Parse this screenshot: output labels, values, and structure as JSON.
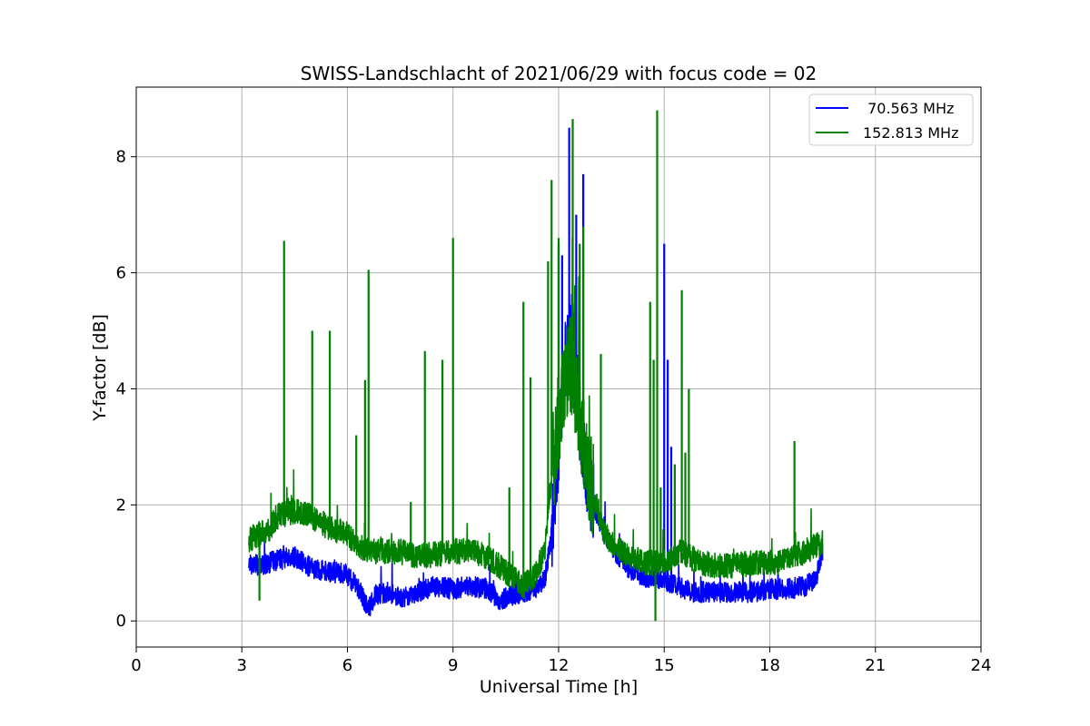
{
  "chart_data": {
    "type": "line",
    "title": "SWISS-Landschlacht of 2021/06/29 with focus code = 02",
    "xlabel": "Universal Time [h]",
    "ylabel": "Y-factor [dB]",
    "xlim": [
      0,
      24
    ],
    "ylim": [
      -0.45,
      9.2
    ],
    "x_ticks": [
      0,
      3,
      6,
      9,
      12,
      15,
      18,
      21,
      24
    ],
    "y_ticks": [
      0,
      2,
      4,
      6,
      8
    ],
    "grid": true,
    "legend_position": "top-right",
    "series": [
      {
        "name": " 70.563 MHz",
        "color": "#0000ff",
        "base": [
          [
            3.2,
            1.0
          ],
          [
            3.5,
            0.95
          ],
          [
            4.0,
            1.05
          ],
          [
            4.5,
            1.1
          ],
          [
            5.0,
            0.9
          ],
          [
            5.5,
            0.85
          ],
          [
            6.0,
            0.8
          ],
          [
            6.3,
            0.55
          ],
          [
            6.6,
            0.2
          ],
          [
            6.8,
            0.45
          ],
          [
            7.2,
            0.5
          ],
          [
            7.5,
            0.4
          ],
          [
            8.0,
            0.5
          ],
          [
            8.5,
            0.6
          ],
          [
            9.0,
            0.55
          ],
          [
            9.5,
            0.6
          ],
          [
            10.0,
            0.55
          ],
          [
            10.3,
            0.35
          ],
          [
            10.7,
            0.45
          ],
          [
            11.0,
            0.5
          ],
          [
            11.3,
            0.55
          ],
          [
            11.6,
            0.7
          ],
          [
            11.8,
            1.5
          ],
          [
            12.0,
            3.0
          ],
          [
            12.2,
            4.5
          ],
          [
            12.4,
            5.0
          ],
          [
            12.6,
            3.5
          ],
          [
            12.8,
            2.5
          ],
          [
            13.0,
            2.0
          ],
          [
            13.3,
            1.5
          ],
          [
            13.6,
            1.2
          ],
          [
            14.0,
            0.9
          ],
          [
            14.5,
            0.75
          ],
          [
            15.0,
            0.7
          ],
          [
            15.4,
            0.6
          ],
          [
            15.8,
            0.5
          ],
          [
            16.5,
            0.5
          ],
          [
            17.0,
            0.5
          ],
          [
            17.5,
            0.5
          ],
          [
            18.0,
            0.55
          ],
          [
            18.5,
            0.55
          ],
          [
            19.0,
            0.6
          ],
          [
            19.3,
            0.7
          ],
          [
            19.5,
            1.2
          ]
        ],
        "noise": 0.18,
        "spikes": [
          [
            12.0,
            6.5
          ],
          [
            12.3,
            8.5
          ],
          [
            12.5,
            7.0
          ],
          [
            12.7,
            7.7
          ],
          [
            13.3,
            1.8
          ],
          [
            15.0,
            6.5
          ],
          [
            15.1,
            4.5
          ],
          [
            15.2,
            3.0
          ],
          [
            12.1,
            6.3
          ]
        ]
      },
      {
        "name": "152.813 MHz",
        "color": "#008000",
        "base": [
          [
            3.2,
            1.4
          ],
          [
            3.5,
            1.5
          ],
          [
            3.8,
            1.6
          ],
          [
            4.0,
            1.8
          ],
          [
            4.5,
            1.9
          ],
          [
            5.0,
            1.8
          ],
          [
            5.5,
            1.6
          ],
          [
            6.0,
            1.5
          ],
          [
            6.3,
            1.3
          ],
          [
            6.7,
            1.2
          ],
          [
            7.0,
            1.2
          ],
          [
            7.5,
            1.2
          ],
          [
            8.0,
            1.1
          ],
          [
            8.5,
            1.15
          ],
          [
            9.0,
            1.2
          ],
          [
            9.5,
            1.2
          ],
          [
            10.0,
            1.1
          ],
          [
            10.5,
            0.85
          ],
          [
            10.8,
            0.7
          ],
          [
            11.0,
            0.6
          ],
          [
            11.3,
            0.75
          ],
          [
            11.6,
            1.2
          ],
          [
            11.8,
            2.5
          ],
          [
            12.0,
            3.5
          ],
          [
            12.3,
            4.5
          ],
          [
            12.5,
            4.0
          ],
          [
            12.8,
            2.8
          ],
          [
            13.0,
            2.2
          ],
          [
            13.3,
            1.5
          ],
          [
            13.6,
            1.3
          ],
          [
            14.0,
            1.1
          ],
          [
            14.5,
            1.0
          ],
          [
            15.0,
            1.0
          ],
          [
            15.5,
            1.2
          ],
          [
            16.0,
            1.0
          ],
          [
            16.5,
            0.95
          ],
          [
            17.0,
            0.95
          ],
          [
            17.5,
            1.0
          ],
          [
            18.0,
            1.0
          ],
          [
            18.5,
            1.05
          ],
          [
            19.0,
            1.2
          ],
          [
            19.5,
            1.35
          ]
        ],
        "noise": 0.22,
        "spikes": [
          [
            3.5,
            0.35
          ],
          [
            4.2,
            6.55
          ],
          [
            5.0,
            5.0
          ],
          [
            5.5,
            5.0
          ],
          [
            6.6,
            6.05
          ],
          [
            6.5,
            4.15
          ],
          [
            6.25,
            3.2
          ],
          [
            7.8,
            2.05
          ],
          [
            8.2,
            4.65
          ],
          [
            8.7,
            4.5
          ],
          [
            9.0,
            6.6
          ],
          [
            11.0,
            5.5
          ],
          [
            10.6,
            2.3
          ],
          [
            11.2,
            4.2
          ],
          [
            11.7,
            6.2
          ],
          [
            11.8,
            7.6
          ],
          [
            12.0,
            6.6
          ],
          [
            12.4,
            8.65
          ],
          [
            12.6,
            6.5
          ],
          [
            12.7,
            6.8
          ],
          [
            13.2,
            4.6
          ],
          [
            14.6,
            5.5
          ],
          [
            14.7,
            4.5
          ],
          [
            14.75,
            0.0
          ],
          [
            14.8,
            8.8
          ],
          [
            14.9,
            2.3
          ],
          [
            15.3,
            2.7
          ],
          [
            15.5,
            5.7
          ],
          [
            15.7,
            4.0
          ],
          [
            15.6,
            2.9
          ],
          [
            18.7,
            3.1
          ]
        ]
      }
    ]
  }
}
